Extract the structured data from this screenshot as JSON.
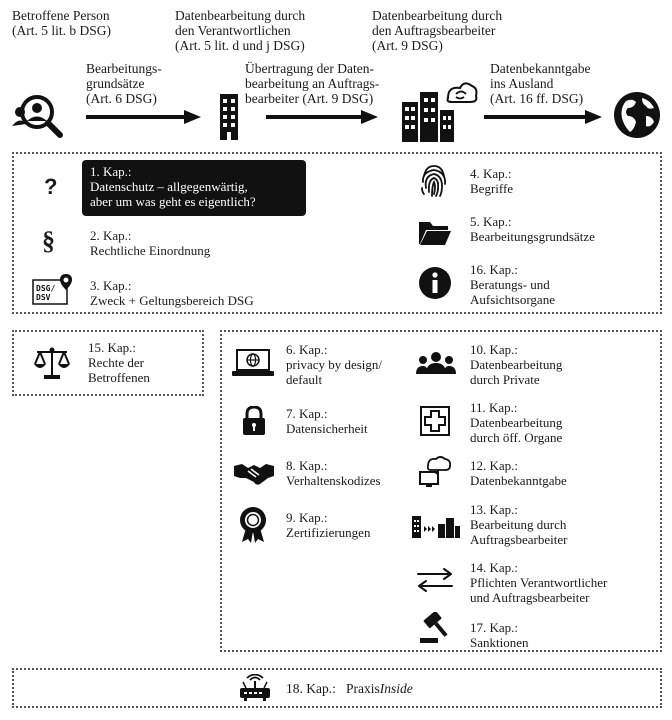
{
  "top": {
    "actors": [
      {
        "line1": "Betroffene Person",
        "line2": "(Art. 5 lit. b DSG)"
      },
      {
        "line1": "Datenbearbeitung durch",
        "line2": "den Verantwortlichen",
        "line3": "(Art. 5 lit. d und j DSG)"
      },
      {
        "line1": "Datenbearbeitung durch",
        "line2": "den Auftragsbearbeiter",
        "line3": "(Art. 9 DSG)"
      }
    ],
    "arrows": [
      {
        "line1": "Bearbeitungs-",
        "line2": "grundsätze",
        "line3": "(Art. 6 DSG)"
      },
      {
        "line1": "Übertragung der Daten-",
        "line2": "bearbeitung an Auftrags-",
        "line3": "bearbeiter (Art. 9 DSG)"
      },
      {
        "line1": "Datenbekanntgabe",
        "line2": "ins Ausland",
        "line3": "(Art. 16 ff. DSG)"
      }
    ],
    "icons": [
      "person-search-icon",
      "building-icon",
      "city-cloud-icon",
      "globe-icon"
    ]
  },
  "box1": {
    "left": [
      {
        "icon": "question-icon",
        "glyph": "?",
        "kap": "1. Kap.:",
        "line1": "Datenschutz – allgegenwärtig,",
        "line2": "aber um was geht es eigentlich?"
      },
      {
        "icon": "paragraph-icon",
        "glyph": "§",
        "kap": "2. Kap.:",
        "line1": "Rechtliche Einordnung"
      },
      {
        "icon": "dsg-map-pin-icon",
        "badge1": "DSG/",
        "badge2": "DSV",
        "kap": "3. Kap.:",
        "line1": "Zweck + Geltungsbereich DSG"
      }
    ],
    "right": [
      {
        "icon": "fingerprint-icon",
        "kap": "4. Kap.:",
        "line1": "Begriffe"
      },
      {
        "icon": "folder-icon",
        "kap": "5. Kap.:",
        "line1": "Bearbeitungsgrundsätze"
      },
      {
        "icon": "info-icon",
        "glyph": "i",
        "kap": "16. Kap.:",
        "line1": "Beratungs- und",
        "line2": "Aufsichtsorgane"
      }
    ]
  },
  "box2": {
    "icon": "scales-icon",
    "kap": "15. Kap.:",
    "line1": "Rechte der",
    "line2": "Betroffenen"
  },
  "box3": {
    "left": [
      {
        "icon": "laptop-globe-icon",
        "kap": "6. Kap.:",
        "line1": "privacy by design/",
        "line2": "default"
      },
      {
        "icon": "lock-icon",
        "kap": "7. Kap.:",
        "line1": "Datensicherheit"
      },
      {
        "icon": "handshake-icon",
        "kap": "8. Kap.:",
        "line1": "Verhaltenskodizes"
      },
      {
        "icon": "certificate-icon",
        "kap": "9. Kap.:",
        "line1": "Zertifizierungen"
      }
    ],
    "right": [
      {
        "icon": "people-group-icon",
        "kap": "10. Kap.:",
        "line1": "Datenbearbeitung",
        "line2": "durch Private"
      },
      {
        "icon": "hospital-cross-icon",
        "kap": "11. Kap.:",
        "line1": "Datenbearbeitung",
        "line2": "durch öff. Organe"
      },
      {
        "icon": "cloud-monitor-icon",
        "kap": "12. Kap.:",
        "line1": "Datenbekanntgabe"
      },
      {
        "icon": "building-transfer-icon",
        "kap": "13. Kap.:",
        "line1": "Bearbeitung durch",
        "line2": "Auftragsbearbeiter"
      },
      {
        "icon": "exchange-arrows-icon",
        "kap": "14. Kap.:",
        "line1": "Pflichten Verantwortlicher",
        "line2": "und Auftragsbearbeiter"
      },
      {
        "icon": "gavel-icon",
        "kap": "17. Kap.:",
        "line1": "Sanktionen"
      }
    ]
  },
  "box4": {
    "icon": "router-icon",
    "kap": "18. Kap.:",
    "title_plain": "Praxis",
    "title_italic": "Inside"
  }
}
